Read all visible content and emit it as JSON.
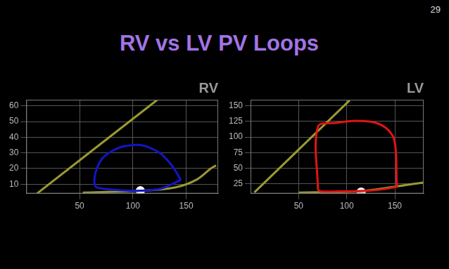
{
  "title": "RV vs LV PV Loops",
  "page_number": 29,
  "chart_data": [
    {
      "type": "line",
      "title": "RV",
      "xlim": [
        0,
        180
      ],
      "xticks": [
        50,
        100,
        150
      ],
      "ylim": [
        4,
        64
      ],
      "yticks": [
        10,
        20,
        30,
        40,
        50,
        60
      ],
      "grid": true,
      "series": [
        {
          "color": "#1414c8",
          "line_style": "solid",
          "marker": "none",
          "x": [
            145,
            137,
            127,
            117,
            107,
            100,
            90,
            80,
            72,
            67,
            64,
            65,
            70,
            87,
            107,
            127,
            145
          ],
          "values": [
            12.7,
            21.5,
            29,
            33,
            35,
            35,
            34,
            31,
            27,
            21.5,
            14,
            8.5,
            7.3,
            6.2,
            5.8,
            7.3,
            12.7
          ]
        },
        {
          "color": "#9a9a32",
          "line_style": "solid",
          "marker": "none",
          "x": [
            10,
            123
          ],
          "values": [
            4,
            64
          ]
        },
        {
          "color": "#9a9a32",
          "line_style": "solid",
          "marker": "none",
          "x": [
            53,
            107,
            140,
            160,
            173,
            178
          ],
          "values": [
            4.6,
            5.8,
            8,
            13,
            20,
            22
          ]
        },
        {
          "color": "#ffffff",
          "line_style": "none",
          "marker": "circle",
          "x": [
            107
          ],
          "values": [
            5.8
          ]
        }
      ]
    },
    {
      "type": "line",
      "title": "LV",
      "xlim": [
        0,
        180
      ],
      "xticks": [
        50,
        100,
        150
      ],
      "ylim": [
        9,
        160
      ],
      "yticks": [
        25,
        50,
        75,
        100,
        125,
        150
      ],
      "grid": true,
      "series": [
        {
          "color": "#e01414",
          "line_style": "solid",
          "marker": "none",
          "x": [
            70,
            70,
            90,
            110,
            130,
            143,
            150,
            152,
            152,
            123,
            90,
            73,
            70
          ],
          "values": [
            15,
            116.3,
            123,
            126,
            123,
            111.5,
            92,
            25,
            20,
            13.5,
            12.5,
            12.5,
            15
          ]
        },
        {
          "color": "#9a9a32",
          "line_style": "solid",
          "marker": "none",
          "x": [
            4,
            103
          ],
          "values": [
            11,
            159
          ]
        },
        {
          "color": "#9a9a32",
          "line_style": "solid",
          "marker": "none",
          "x": [
            50,
            110,
            150,
            180
          ],
          "values": [
            10.6,
            12.5,
            20,
            27
          ]
        },
        {
          "color": "#ffffff",
          "line_style": "none",
          "marker": "circle",
          "x": [
            115
          ],
          "values": [
            11.5
          ]
        }
      ]
    }
  ]
}
